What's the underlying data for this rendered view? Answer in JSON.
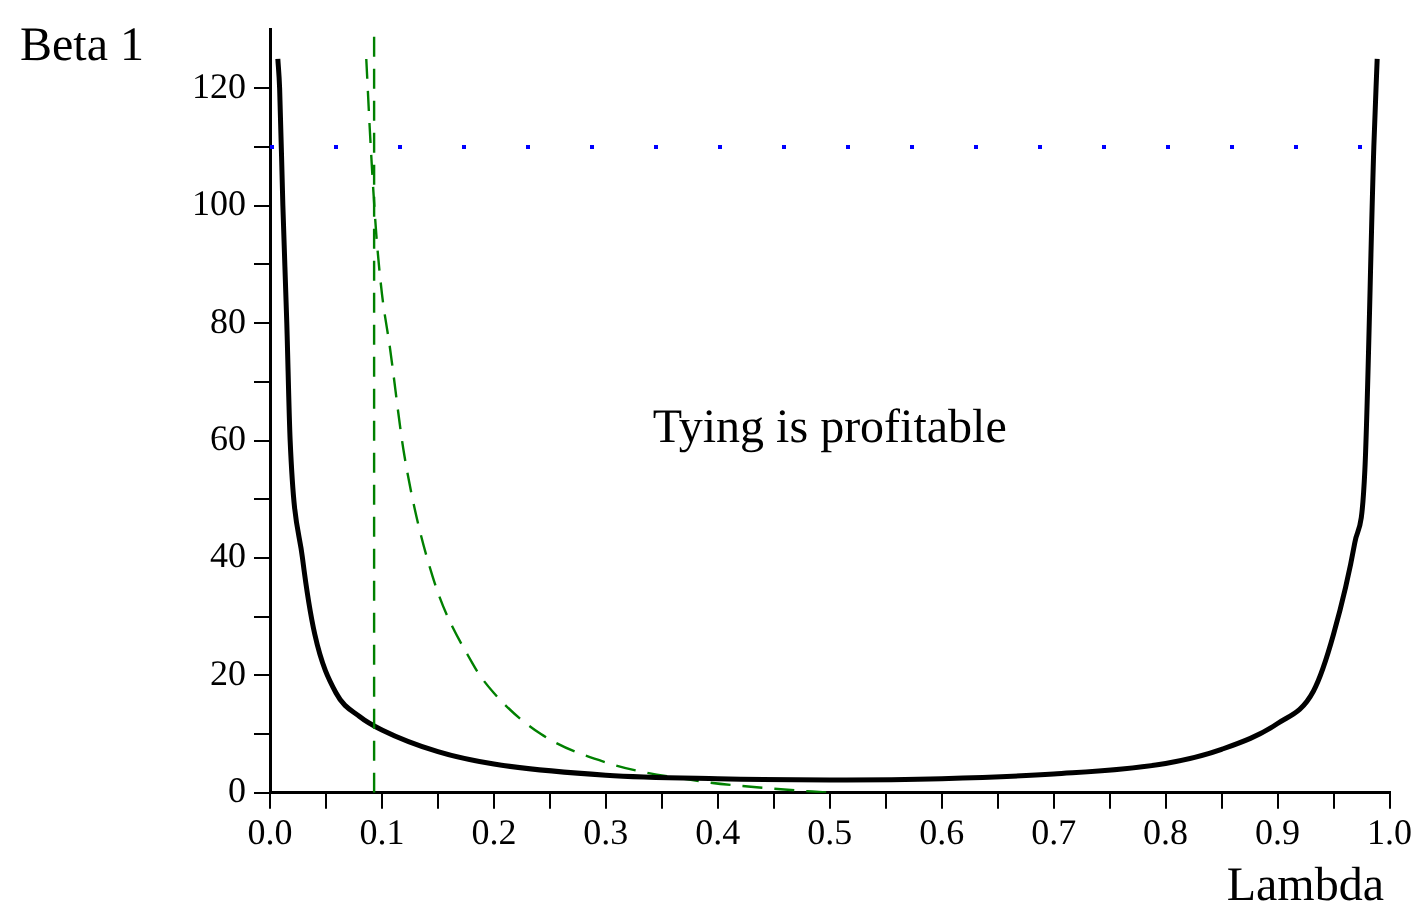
{
  "chart_data": {
    "type": "line",
    "xlabel": "Lambda",
    "ylabel": "Beta 1",
    "annotations": [
      "Tying is profitable"
    ],
    "xlim": [
      0,
      1
    ],
    "ylim": [
      0,
      130
    ],
    "xticks": [
      {
        "value": 0,
        "label": "0.0"
      },
      {
        "value": 0.05,
        "label": null
      },
      0.1,
      {
        "value": 0.15,
        "label": null
      },
      0.2,
      {
        "value": 0.25,
        "label": null
      },
      0.3,
      {
        "value": 0.35,
        "label": null
      },
      0.4,
      {
        "value": 0.45,
        "label": null
      },
      0.5,
      {
        "value": 0.55,
        "label": null
      },
      0.6,
      {
        "value": 0.65,
        "label": null
      },
      0.7,
      {
        "value": 0.75,
        "label": null
      },
      0.8,
      {
        "value": 0.85,
        "label": null
      },
      0.9,
      {
        "value": 0.95,
        "label": null
      },
      {
        "value": 1,
        "label": "1.0"
      }
    ],
    "yticks": [
      0,
      {
        "value": 10,
        "label": null
      },
      20,
      {
        "value": 30,
        "label": null
      },
      40,
      {
        "value": 50,
        "label": null
      },
      60,
      {
        "value": 70,
        "label": null
      },
      80,
      {
        "value": 90,
        "label": null
      },
      100,
      {
        "value": 110,
        "label": null
      },
      120
    ],
    "series": [
      {
        "color": "#000000",
        "line_style": "solid",
        "x": [
          0.007,
          0.0086,
          0.0115,
          0.015,
          0.018,
          0.029,
          0.04,
          0.059,
          0.08,
          0.1,
          0.15,
          0.2,
          0.3,
          0.4,
          0.5,
          0.6,
          0.7,
          0.8,
          0.85,
          0.9,
          0.932,
          0.95,
          0.969,
          0.978,
          0.986,
          0.989
        ],
        "values": [
          125,
          120,
          100,
          80,
          60,
          40,
          27,
          17,
          13,
          10.7,
          7,
          4.9,
          3,
          2.4,
          2.2,
          2.4,
          3.2,
          5,
          7.4,
          11.8,
          17.3,
          27,
          42.6,
          55,
          110,
          125
        ]
      },
      {
        "color": "#008000",
        "line_style": "dashed",
        "x": [
          0.086,
          0.09,
          0.095,
          0.1,
          0.107,
          0.12,
          0.145,
          0.181,
          0.2,
          0.242,
          0.303,
          0.383,
          0.45,
          0.5
        ],
        "values": [
          125,
          110,
          95,
          85,
          76,
          57.5,
          37,
          22,
          17,
          10,
          5,
          2,
          0.7,
          0
        ]
      }
    ],
    "ref_lines": [
      {
        "axis": "x",
        "value": 0.093,
        "color": "#008000",
        "line_style": "dashed"
      },
      {
        "axis": "y",
        "value": 110,
        "color": "#0000ff",
        "line_style": "dotted"
      }
    ],
    "grid": false,
    "legend": false,
    "marker": "none"
  }
}
